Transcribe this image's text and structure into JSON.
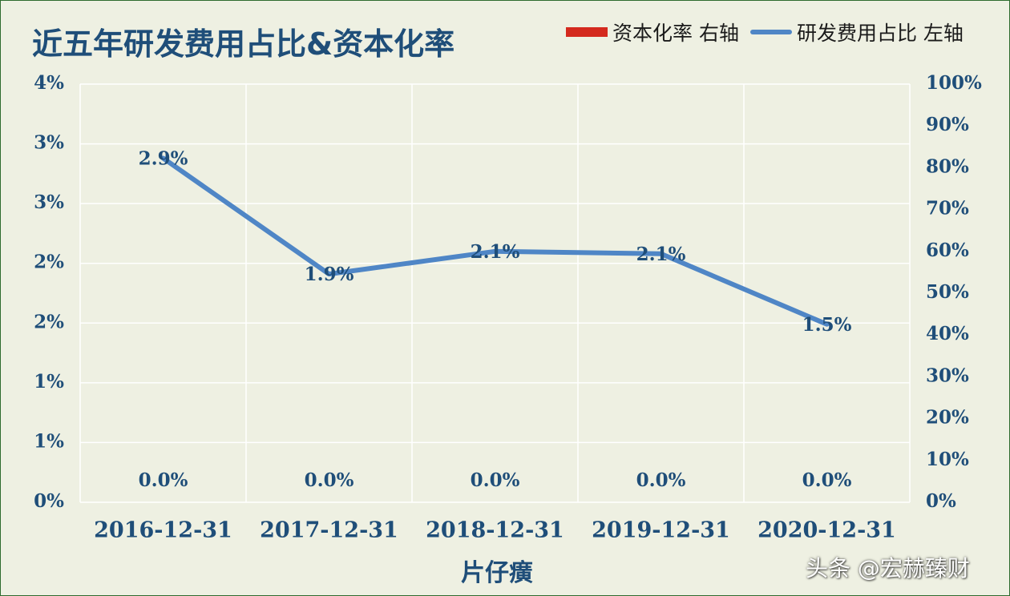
{
  "chart_data": {
    "type": "line",
    "title": "近五年研发费用占比&资本化率",
    "categories": [
      "2016-12-31",
      "2017-12-31",
      "2018-12-31",
      "2019-12-31",
      "2020-12-31"
    ],
    "xlabel": "片仔癀",
    "y_left_ticks": [
      "0%",
      "1%",
      "1%",
      "2%",
      "2%",
      "3%",
      "3%",
      "4%"
    ],
    "y_right_ticks": [
      "0%",
      "10%",
      "20%",
      "30%",
      "40%",
      "50%",
      "60%",
      "70%",
      "80%",
      "90%",
      "100%"
    ],
    "y_left_lim": [
      0,
      3.5
    ],
    "y_right_lim": [
      0,
      100
    ],
    "legend": [
      "资本化率 右轴",
      "研发费用占比 左轴"
    ],
    "legend_position": "top-right",
    "grid": true,
    "series": [
      {
        "name": "研发费用占比 左轴",
        "axis": "left",
        "type": "line",
        "color": "#4f86c6",
        "values": [
          2.88,
          1.91,
          2.1,
          2.08,
          1.49
        ],
        "labels": [
          "2.9%",
          "1.9%",
          "2.1%",
          "2.1%",
          "1.5%"
        ]
      },
      {
        "name": "资本化率 右轴",
        "axis": "right",
        "type": "bar",
        "color": "#d42a1e",
        "values": [
          0,
          0,
          0,
          0,
          0
        ],
        "labels": [
          "0.0%",
          "0.0%",
          "0.0%",
          "0.0%",
          "0.0%"
        ]
      }
    ]
  },
  "watermark": "头条 @宏赫臻财",
  "colors": {
    "background": "#eef0e2",
    "title": "#1f4e79",
    "grid": "#ffffff",
    "line": "#4f86c6",
    "bar": "#d42a1e"
  }
}
